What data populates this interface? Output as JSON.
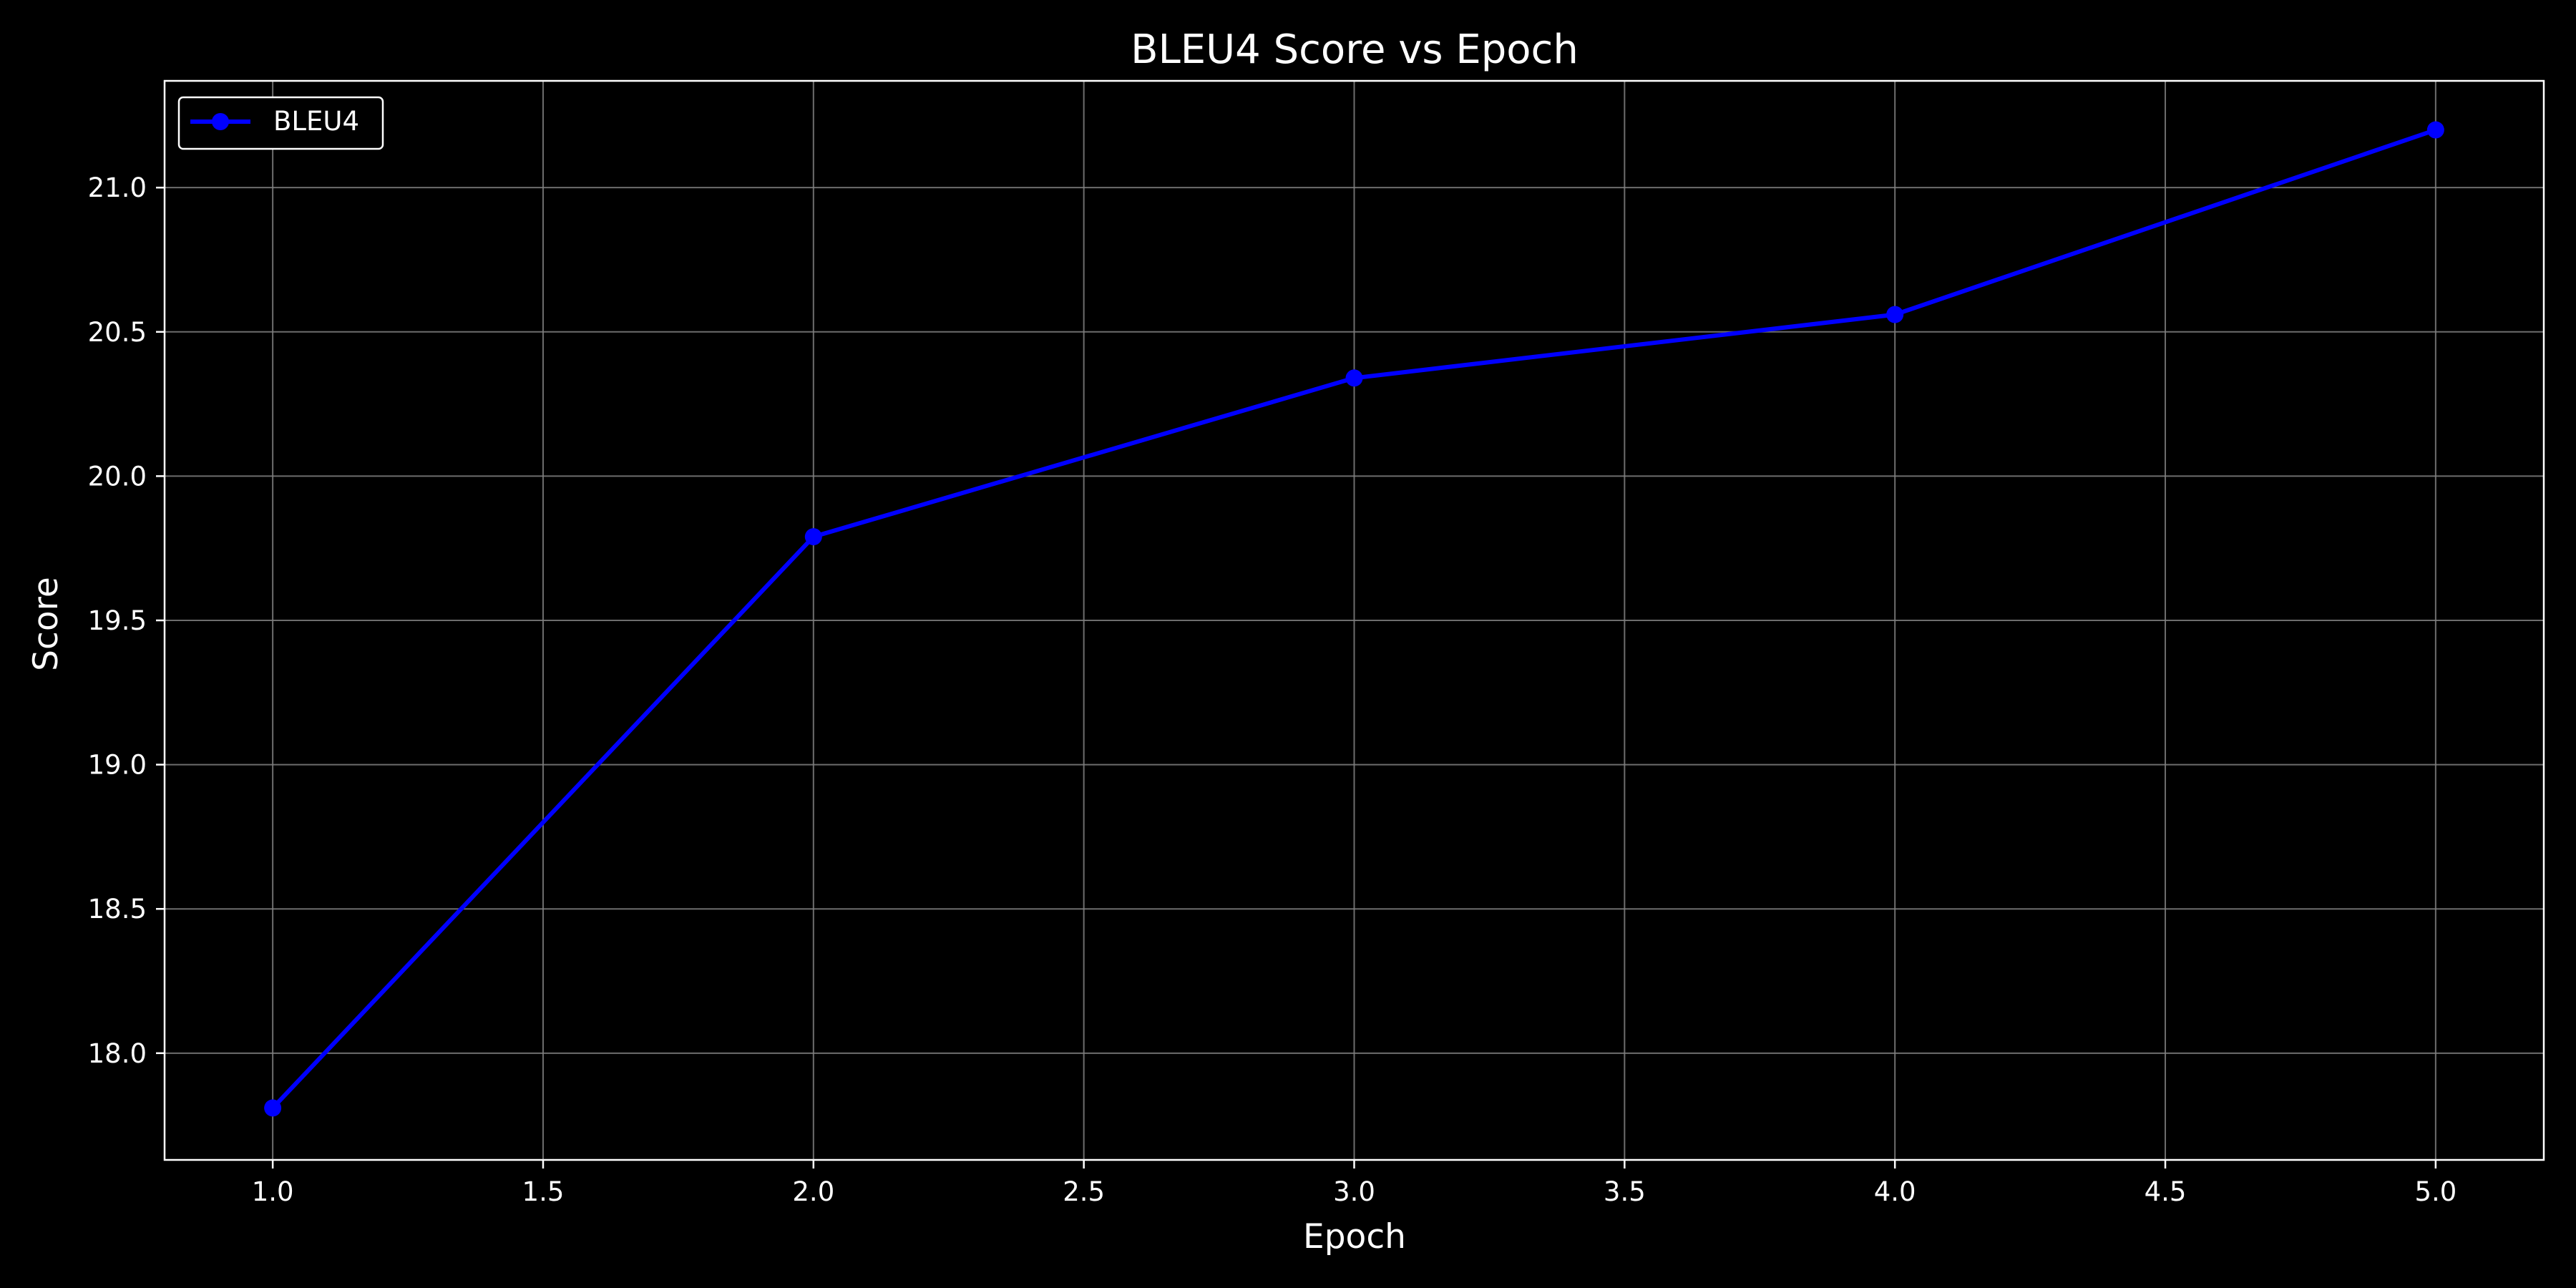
{
  "chart_data": {
    "type": "line",
    "title": "BLEU4 Score vs Epoch",
    "xlabel": "Epoch",
    "ylabel": "Score",
    "xlim": [
      0.8,
      5.2
    ],
    "ylim": [
      17.63,
      21.37
    ],
    "xticks": [
      1.0,
      1.5,
      2.0,
      2.5,
      3.0,
      3.5,
      4.0,
      4.5,
      5.0
    ],
    "xtick_labels": [
      "1.0",
      "1.5",
      "2.0",
      "2.5",
      "3.0",
      "3.5",
      "4.0",
      "4.5",
      "5.0"
    ],
    "yticks": [
      18.0,
      18.5,
      19.0,
      19.5,
      20.0,
      20.5,
      21.0
    ],
    "ytick_labels": [
      "18.0",
      "18.5",
      "19.0",
      "19.5",
      "20.0",
      "20.5",
      "21.0"
    ],
    "grid": true,
    "legend_position": "top-left",
    "series": [
      {
        "name": "BLEU4",
        "color": "#0000ff",
        "marker": "circle",
        "x": [
          1,
          2,
          3,
          4,
          5
        ],
        "y": [
          17.81,
          19.79,
          20.34,
          20.56,
          21.2
        ]
      }
    ]
  },
  "colors": {
    "background": "#000000",
    "foreground": "#ffffff",
    "grid": "#808080"
  }
}
